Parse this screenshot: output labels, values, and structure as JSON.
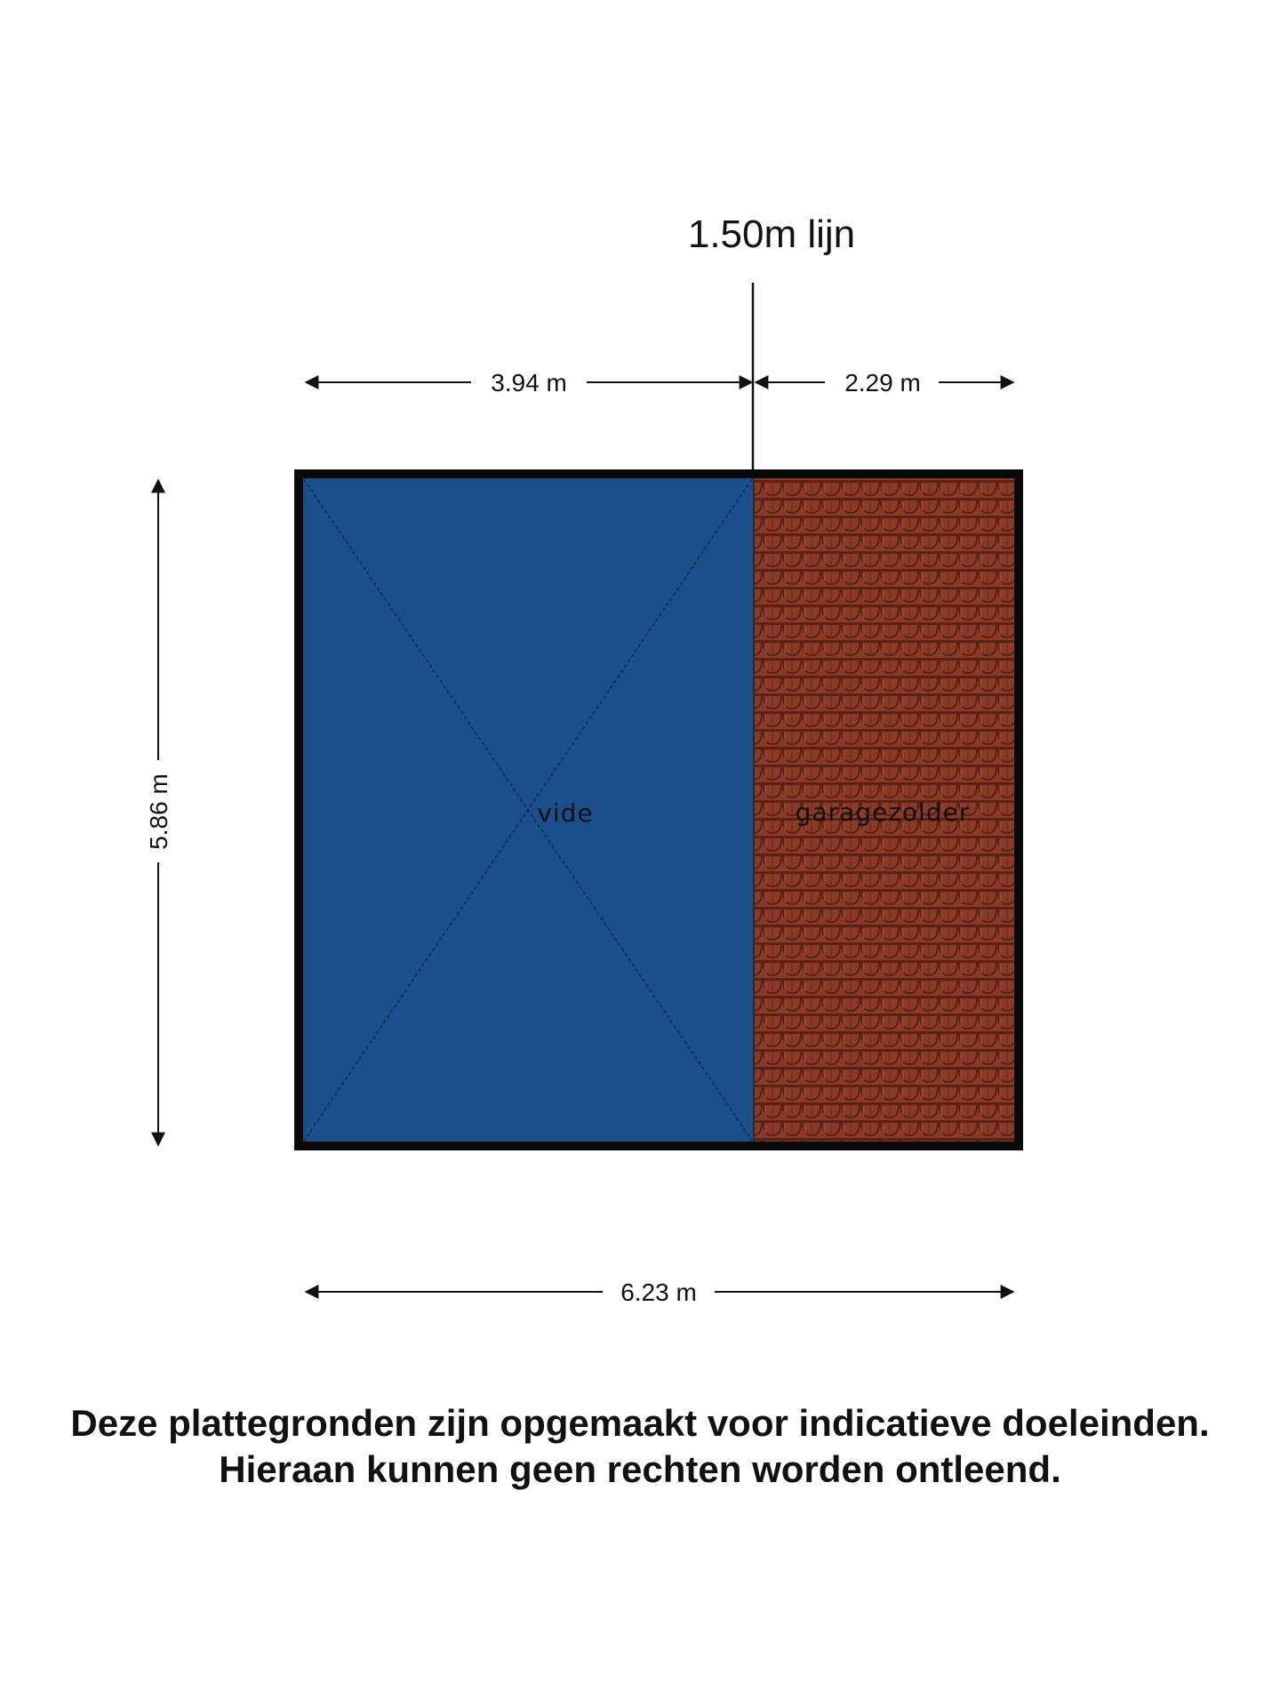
{
  "floorplan": {
    "line_label": "1.50m lijn",
    "dimensions": {
      "top_left": "3.94 m",
      "top_right": "2.29 m",
      "left_height": "5.86 m",
      "bottom_width": "6.23 m"
    },
    "rooms": [
      {
        "name": "vide",
        "color": "#1b4f8c"
      },
      {
        "name": "garagezolder",
        "color": "#8a3a27"
      }
    ]
  },
  "disclaimer": {
    "line1": "Deze plattegronden zijn opgemaakt voor indicatieve doeleinden.",
    "line2": "Hieraan kunnen geen rechten worden ontleend."
  }
}
